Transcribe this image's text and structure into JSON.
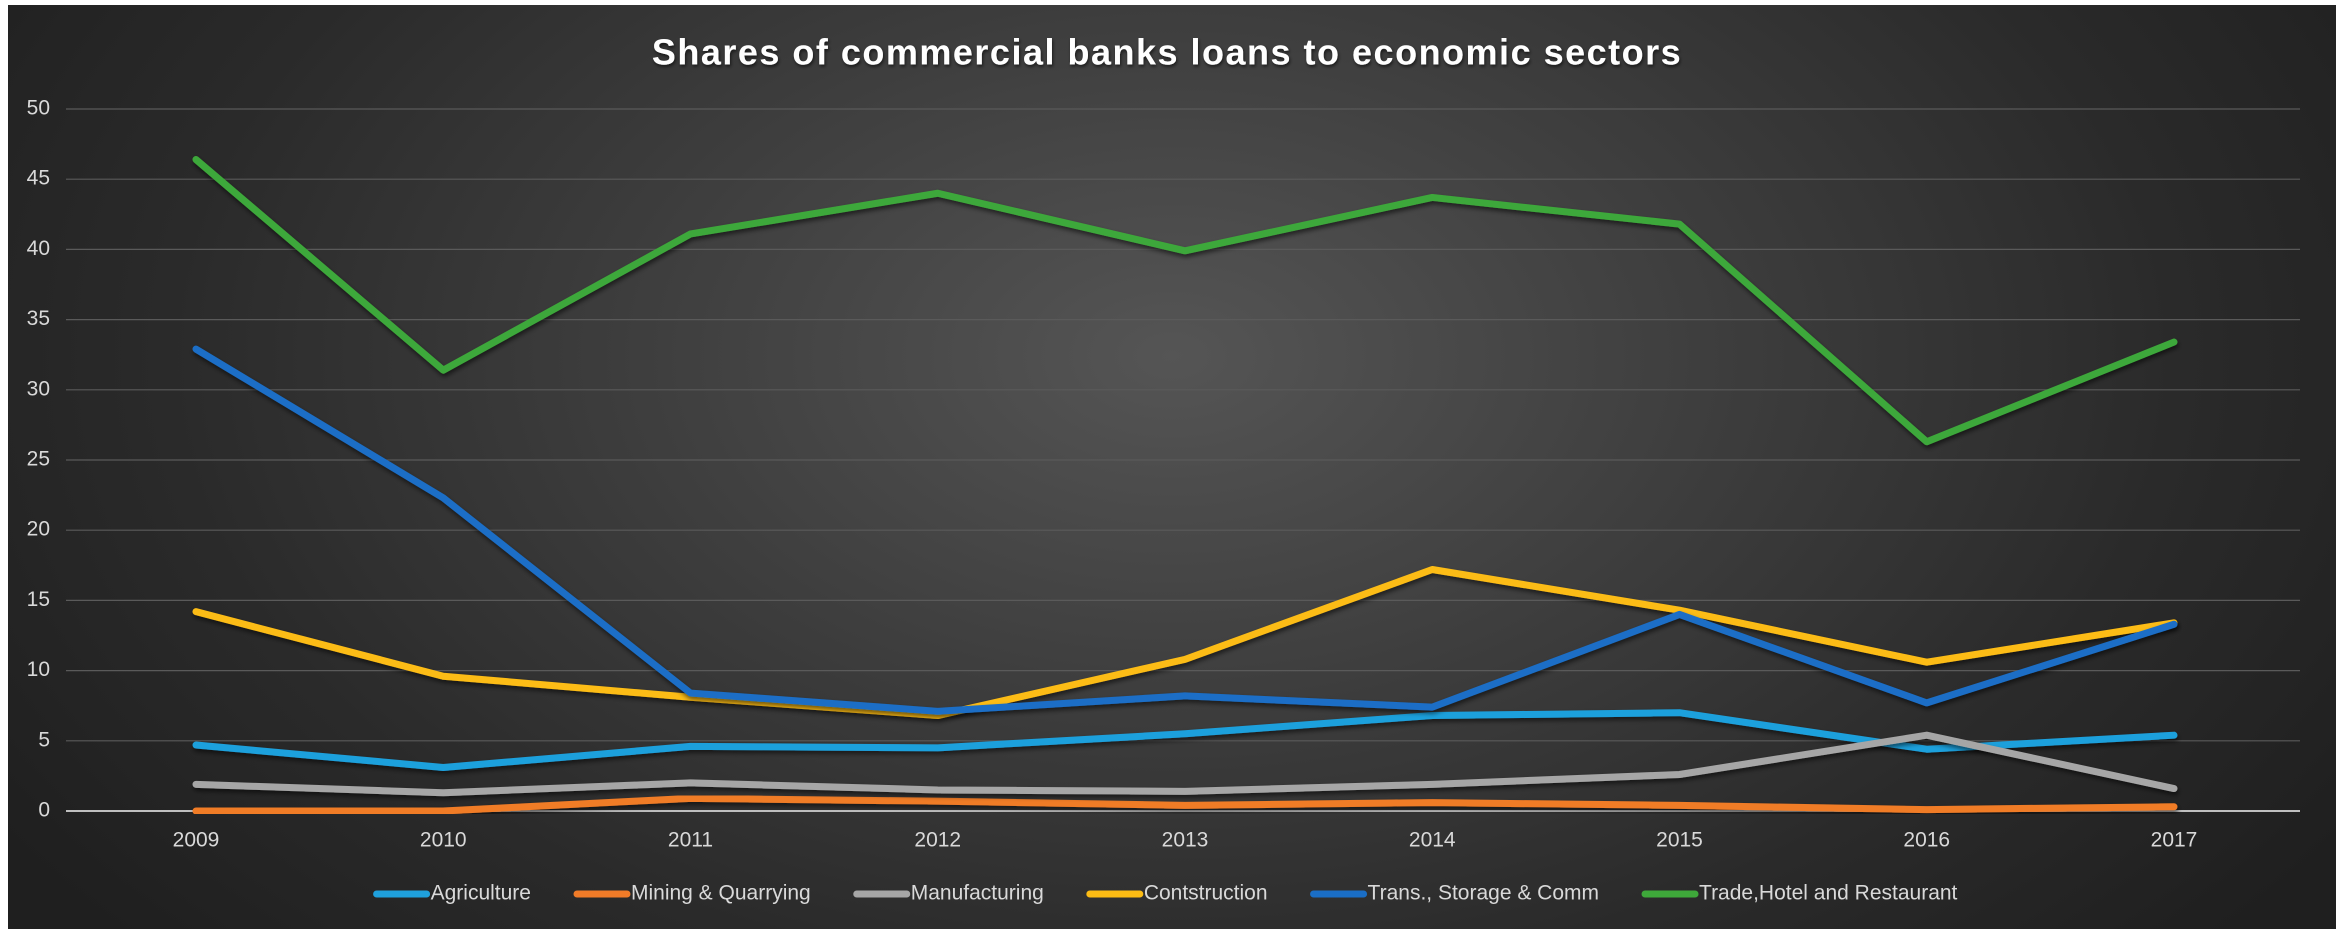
{
  "chart_data": {
    "type": "line",
    "title": "Shares of commercial banks loans to economic sectors",
    "xlabel": "",
    "ylabel": "",
    "categories": [
      "2009",
      "2010",
      "2011",
      "2012",
      "2013",
      "2014",
      "2015",
      "2016",
      "2017"
    ],
    "ylim": [
      0,
      50
    ],
    "yticks": [
      0,
      5,
      10,
      15,
      20,
      25,
      30,
      35,
      40,
      45,
      50
    ],
    "grid": true,
    "legend_position": "bottom",
    "series": [
      {
        "name": "Agriculture",
        "color": "#1fa0dc",
        "values": [
          4.7,
          3.1,
          4.6,
          4.5,
          5.5,
          6.8,
          7.0,
          4.4,
          5.4
        ]
      },
      {
        "name": "Mining & Quarrying",
        "color": "#f07b28",
        "values": [
          0.0,
          0.0,
          0.9,
          0.7,
          0.4,
          0.6,
          0.4,
          0.1,
          0.3
        ]
      },
      {
        "name": "Manufacturing",
        "color": "#a6a6a6",
        "values": [
          1.9,
          1.3,
          2.0,
          1.5,
          1.4,
          1.9,
          2.6,
          5.4,
          1.6
        ]
      },
      {
        "name": "Contstruction",
        "color": "#fcbc14",
        "values": [
          14.2,
          9.6,
          8.1,
          6.8,
          10.8,
          17.2,
          14.3,
          10.6,
          13.4
        ]
      },
      {
        "name": "Trans., Storage & Comm",
        "color": "#1a6ec6",
        "values": [
          32.9,
          22.3,
          8.4,
          7.1,
          8.2,
          7.4,
          14.0,
          7.7,
          13.3
        ]
      },
      {
        "name": "Trade,Hotel and Restaurant",
        "color": "#3ea83a",
        "values": [
          46.4,
          31.4,
          41.1,
          44.0,
          39.9,
          43.7,
          41.8,
          26.3,
          33.4
        ]
      }
    ]
  }
}
